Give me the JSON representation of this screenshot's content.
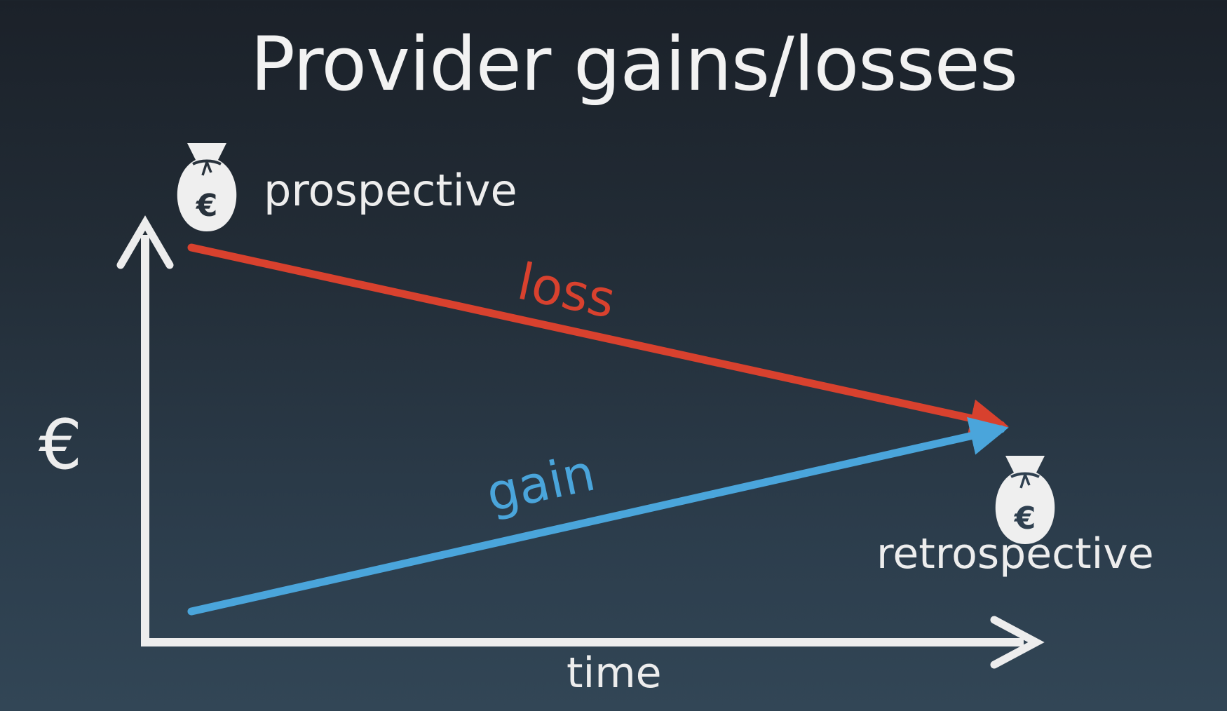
{
  "title": "Provider gains/losses",
  "axes": {
    "y_label": "€",
    "x_label": "time"
  },
  "points": {
    "start_label": "prospective",
    "end_label": "retrospective",
    "bag_symbol": "€"
  },
  "lines": {
    "loss_label": "loss",
    "gain_label": "gain"
  },
  "colors": {
    "loss": "#d8412e",
    "gain": "#4aa5db",
    "axis": "#ededed",
    "background_top": "#1b2129",
    "background_bottom": "#324656"
  },
  "icons": [
    "money-bag-icon",
    "money-bag-icon"
  ]
}
